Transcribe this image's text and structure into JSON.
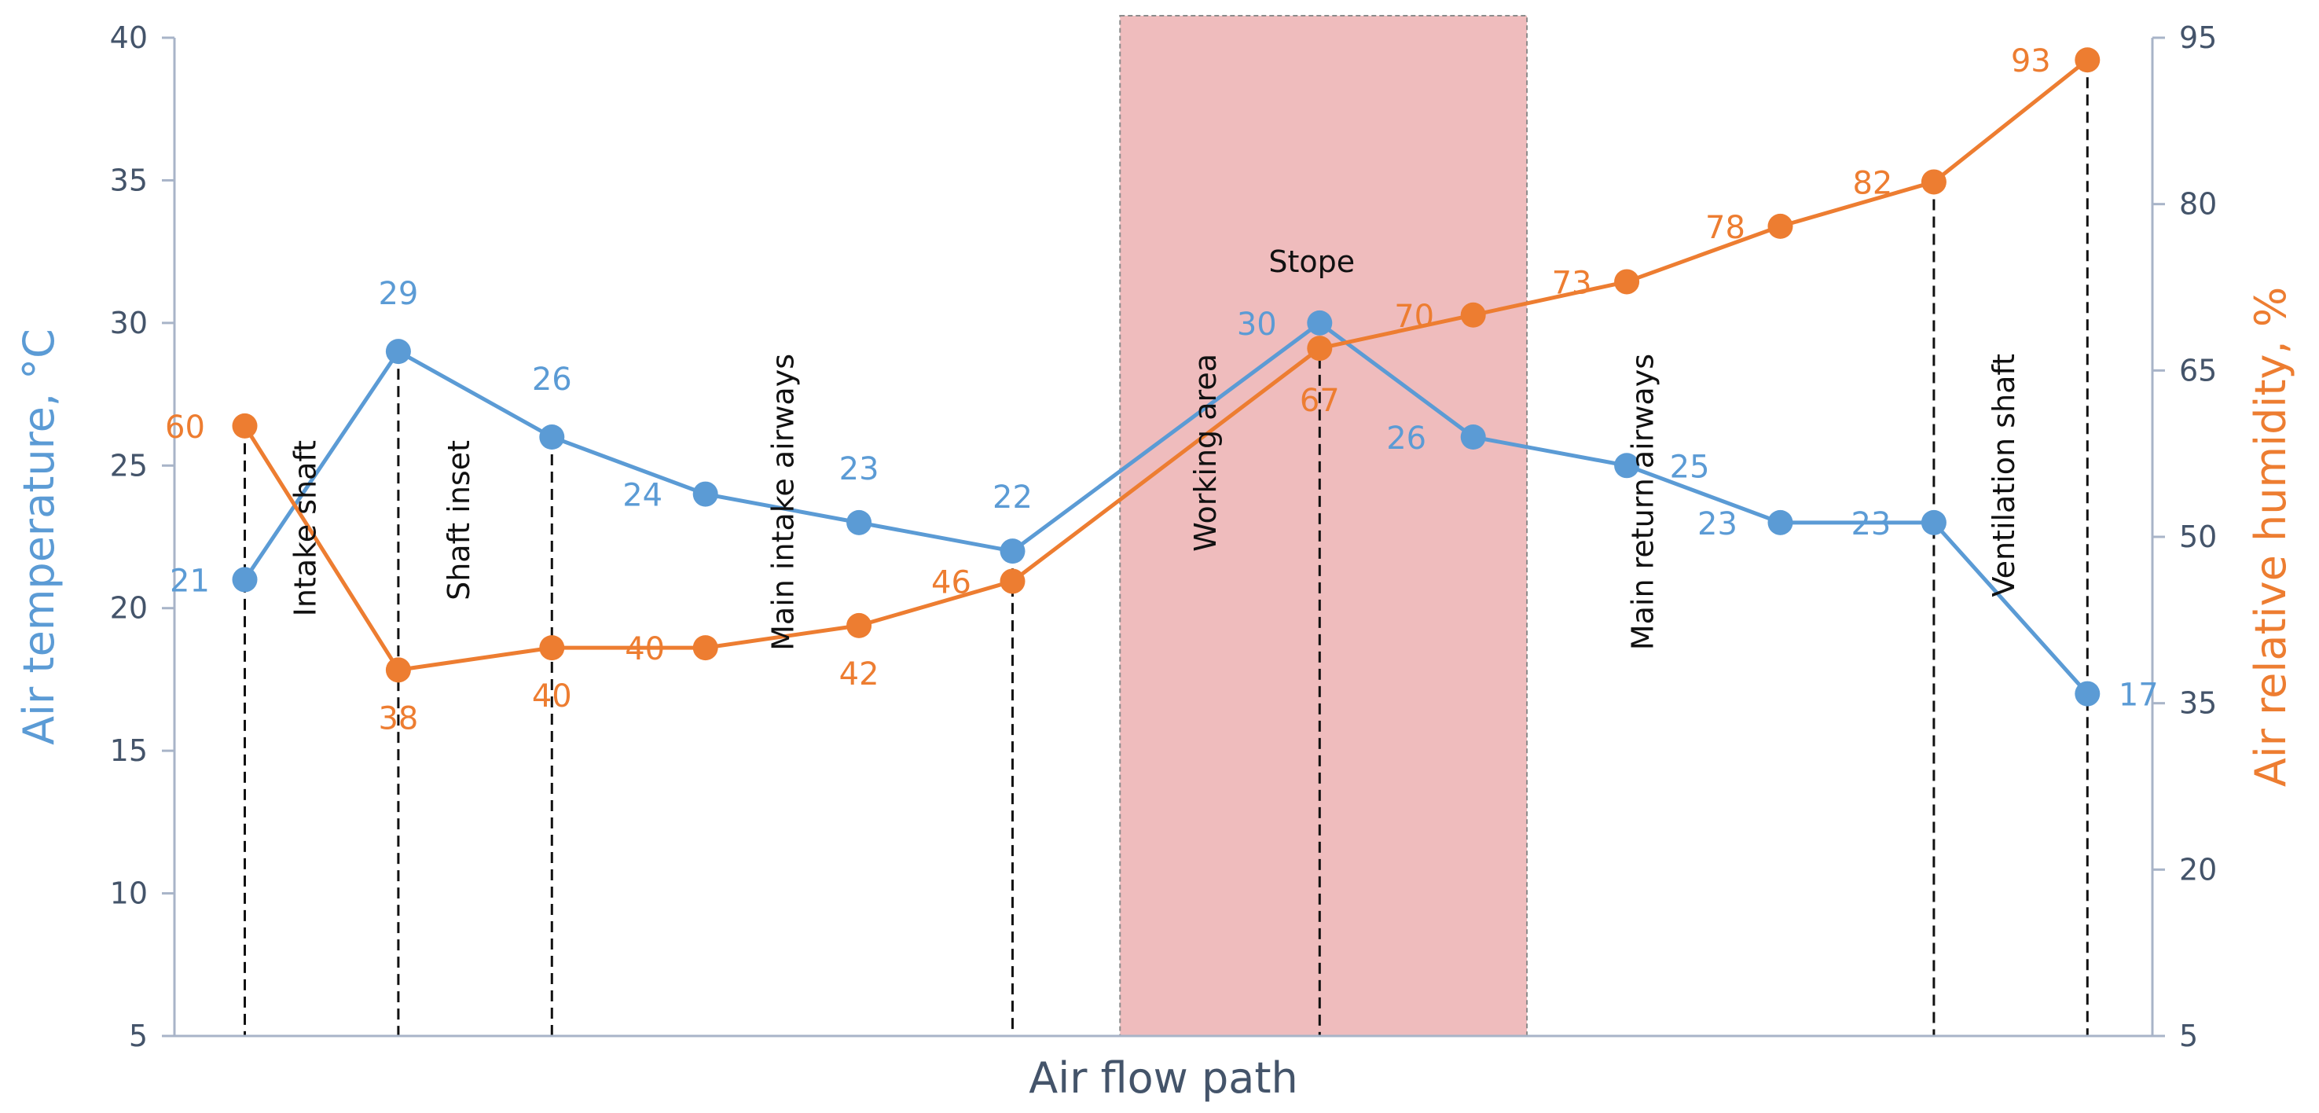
{
  "chart_data": {
    "type": "line",
    "xlabel": "Air flow path",
    "x": [
      1,
      2,
      3,
      4,
      5,
      6,
      7,
      8,
      9,
      10,
      11,
      12,
      13
    ],
    "y_axis_left": {
      "label": "Air temperature, °C",
      "ylim": [
        5,
        40
      ],
      "ticks": [
        5,
        10,
        15,
        20,
        25,
        30,
        35,
        40
      ],
      "color": "#5b9bd5"
    },
    "y_axis_right": {
      "label": "Air relative humidity, %",
      "ylim": [
        5,
        95
      ],
      "ticks": [
        5,
        20,
        35,
        50,
        65,
        80,
        95
      ],
      "color": "#ed7d31"
    },
    "series": [
      {
        "axis": "left",
        "color": "#5b9bd5",
        "values": [
          21,
          29,
          26,
          24,
          23,
          22,
          null,
          30,
          26,
          25,
          23,
          23,
          17
        ],
        "labels": [
          "21",
          "29",
          "26",
          "24",
          "23",
          "22",
          "",
          "30",
          "26",
          "25",
          "23",
          "23",
          "17"
        ]
      },
      {
        "axis": "right",
        "color": "#ed7d31",
        "values": [
          60,
          38,
          40,
          40,
          42,
          46,
          null,
          67,
          70,
          73,
          78,
          82,
          93
        ],
        "labels": [
          "60",
          "38",
          "40",
          "40",
          "42",
          "46",
          "",
          "67",
          "70",
          "73",
          "78",
          "82",
          "93"
        ]
      }
    ],
    "highlight": {
      "x_range": [
        6.7,
        9.35
      ],
      "color": "#efbcbd",
      "border_color": "#8c8c8c"
    },
    "segment_markers": [
      {
        "x": 1,
        "label": "Intake shaft"
      },
      {
        "x": 2,
        "label": "Shaft inset"
      },
      {
        "x": 3,
        "label": ""
      },
      {
        "x": 6,
        "label": ""
      },
      {
        "x": 8,
        "label": ""
      },
      {
        "x": 12,
        "label": ""
      },
      {
        "x": 13,
        "label": ""
      }
    ],
    "region_labels": [
      {
        "x": 4.5,
        "text": "Main intake airways"
      },
      {
        "x": 7.25,
        "text": "Working area"
      },
      {
        "x": 10.1,
        "text": "Main return airways"
      },
      {
        "x": 12.45,
        "text": "Ventilation shaft"
      }
    ],
    "top_labels": [
      {
        "x": 8,
        "text": "Stope"
      }
    ],
    "grid": false
  }
}
